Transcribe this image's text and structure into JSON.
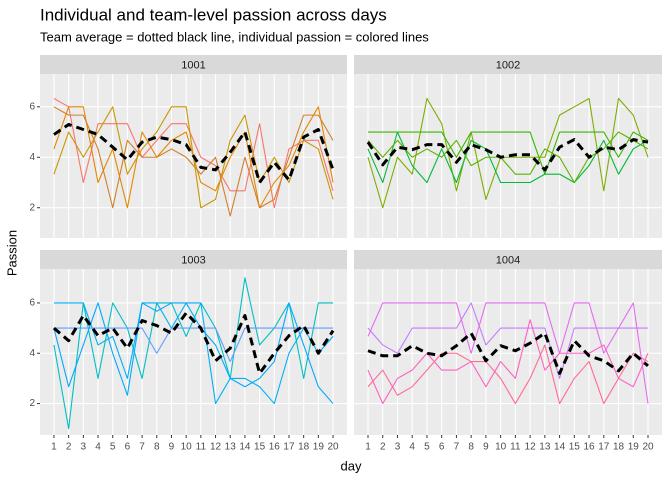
{
  "title": "Individual and team-level passion across days",
  "subtitle": "Team average = dotted black line, individual passion = colored lines",
  "x_label": "day",
  "y_label": "Passion",
  "chart_data": [
    {
      "type": "line",
      "title": "1001",
      "x": [
        1,
        2,
        3,
        4,
        5,
        6,
        7,
        8,
        9,
        10,
        11,
        12,
        13,
        14,
        15,
        16,
        17,
        18,
        19,
        20
      ],
      "xlim": [
        0.05,
        20.95
      ],
      "xticks": [
        1,
        2,
        3,
        4,
        5,
        6,
        7,
        8,
        9,
        10,
        11,
        12,
        13,
        14,
        15,
        16,
        17,
        18,
        19,
        20
      ],
      "ylim": [
        0.8,
        7.3
      ],
      "yticks": [
        2,
        4,
        6
      ],
      "series": [
        {
          "color": "#F8766D",
          "values": [
            6.33,
            6,
            3,
            5.33,
            5.33,
            5.33,
            4,
            4.67,
            5.33,
            5.33,
            4,
            3.67,
            2.67,
            2.67,
            5.33,
            2,
            4.33,
            4.67,
            4.67,
            2.67
          ]
        },
        {
          "color": "#E58700",
          "values": [
            4.33,
            6,
            6,
            3,
            4.33,
            2,
            5,
            4,
            4.67,
            5,
            3,
            2.67,
            4,
            5,
            2,
            3,
            3.67,
            5,
            6,
            3
          ]
        },
        {
          "color": "#C99800",
          "values": [
            3.33,
            5,
            4,
            5,
            6,
            3.33,
            4.33,
            5,
            6,
            6,
            2,
            2.33,
            4.67,
            5.67,
            3,
            4,
            3,
            4.67,
            4.33,
            2.33
          ]
        },
        {
          "color": "#D17F2A",
          "values": [
            6,
            5.67,
            5.67,
            4.33,
            2,
            4.67,
            4,
            4,
            4.33,
            4,
            3.33,
            4,
            1.67,
            4,
            2,
            2.33,
            4,
            5.67,
            5.67,
            4.67
          ]
        },
        {
          "color": "#000000",
          "linestyle": "dashed",
          "values": [
            4.9,
            5.3,
            5.1,
            4.9,
            4.4,
            3.9,
            4.6,
            4.8,
            4.7,
            4.5,
            3.6,
            3.5,
            4.2,
            5.0,
            3.0,
            3.8,
            3.1,
            4.8,
            5.1,
            3.5
          ]
        }
      ]
    },
    {
      "type": "line",
      "title": "1002",
      "x": [
        1,
        2,
        3,
        4,
        5,
        6,
        7,
        8,
        9,
        10,
        11,
        12,
        13,
        14,
        15,
        16,
        17,
        18,
        19,
        20
      ],
      "xlim": [
        0.05,
        20.95
      ],
      "xticks": [
        1,
        2,
        3,
        4,
        5,
        6,
        7,
        8,
        9,
        10,
        11,
        12,
        13,
        14,
        15,
        16,
        17,
        18,
        19,
        20
      ],
      "ylim": [
        0.8,
        7.3
      ],
      "yticks": [
        2,
        4,
        6
      ],
      "series": [
        {
          "color": "#7CAE00",
          "values": [
            4,
            2,
            4,
            3.33,
            6.33,
            5.33,
            2.67,
            5,
            2.33,
            4,
            4,
            4,
            4,
            5.67,
            6,
            6.33,
            2.67,
            6.33,
            5.67,
            4
          ]
        },
        {
          "color": "#39B600",
          "values": [
            5,
            5,
            5,
            5,
            5,
            5,
            4,
            5,
            5,
            5,
            5,
            5,
            3.33,
            5,
            5,
            5,
            5,
            4,
            5,
            4.67
          ]
        },
        {
          "color": "#00BA38",
          "values": [
            4.33,
            3,
            5,
            3.67,
            3,
            4.33,
            3,
            4.67,
            4.33,
            3,
            3,
            3,
            3.33,
            3.33,
            3,
            3.67,
            4.67,
            3.33,
            4.33,
            4.67
          ]
        },
        {
          "color": "#5BB300",
          "values": [
            4.67,
            4,
            4.67,
            4,
            4.33,
            4,
            4.67,
            3.67,
            4,
            4,
            3.33,
            3.33,
            4.33,
            4,
            3,
            4,
            4.33,
            5,
            4.67,
            4.33
          ]
        },
        {
          "color": "#000000",
          "linestyle": "dashed",
          "values": [
            4.6,
            3.7,
            4.4,
            4.3,
            4.5,
            4.5,
            3.8,
            4.5,
            4.3,
            4.0,
            4.1,
            4.1,
            3.5,
            4.4,
            4.7,
            4.0,
            4.4,
            4.3,
            4.7,
            4.6
          ]
        }
      ]
    },
    {
      "type": "line",
      "title": "1003",
      "x": [
        1,
        2,
        3,
        4,
        5,
        6,
        7,
        8,
        9,
        10,
        11,
        12,
        13,
        14,
        15,
        16,
        17,
        18,
        19,
        20
      ],
      "xlim": [
        0.05,
        20.95
      ],
      "xticks": [
        1,
        2,
        3,
        4,
        5,
        6,
        7,
        8,
        9,
        10,
        11,
        12,
        13,
        14,
        15,
        16,
        17,
        18,
        19,
        20
      ],
      "ylim": [
        0.75,
        7.35
      ],
      "yticks": [
        2,
        4,
        6
      ],
      "series": [
        {
          "color": "#00BFC4",
          "values": [
            4.33,
            1,
            6,
            3,
            6,
            5,
            3,
            6,
            6,
            4.67,
            6,
            5,
            3,
            7,
            4.33,
            5,
            6,
            3,
            6,
            6
          ]
        },
        {
          "color": "#00B0F6",
          "values": [
            6,
            6,
            6,
            4.33,
            4.67,
            3,
            6,
            6,
            5,
            6,
            6,
            2,
            3,
            3,
            2.67,
            2,
            4,
            5,
            4,
            4.67
          ]
        },
        {
          "color": "#619CFF",
          "values": [
            5,
            5,
            5,
            5,
            5,
            5,
            5,
            4,
            5,
            5,
            5,
            5,
            3.67,
            5,
            5,
            5,
            5,
            5,
            5,
            5
          ]
        },
        {
          "color": "#00A9FF",
          "values": [
            5,
            2.67,
            4.33,
            6,
            4,
            2.33,
            6,
            5.67,
            6,
            6,
            5,
            4.33,
            3,
            2.67,
            3,
            3.67,
            6,
            4.33,
            2.67,
            2
          ]
        },
        {
          "color": "#000000",
          "linestyle": "dashed",
          "values": [
            5.0,
            4.5,
            5.5,
            4.7,
            5.0,
            4.2,
            5.3,
            5.1,
            4.8,
            5.6,
            5.0,
            3.7,
            4.2,
            5.5,
            3.2,
            4.0,
            4.7,
            5.1,
            4.0,
            4.9
          ]
        }
      ]
    },
    {
      "type": "line",
      "title": "1004",
      "x": [
        1,
        2,
        3,
        4,
        5,
        6,
        7,
        8,
        9,
        10,
        11,
        12,
        13,
        14,
        15,
        16,
        17,
        18,
        19,
        20
      ],
      "xlim": [
        0.05,
        20.95
      ],
      "xticks": [
        1,
        2,
        3,
        4,
        5,
        6,
        7,
        8,
        9,
        10,
        11,
        12,
        13,
        14,
        15,
        16,
        17,
        18,
        19,
        20
      ],
      "ylim": [
        0.75,
        7.35
      ],
      "yticks": [
        2,
        4,
        6
      ],
      "series": [
        {
          "color": "#C77CFF",
          "values": [
            5,
            4.33,
            4,
            5,
            5,
            5,
            5,
            6,
            4.33,
            5,
            5,
            5,
            5,
            3,
            5,
            5,
            5,
            5,
            5,
            5
          ]
        },
        {
          "color": "#E76BF3",
          "values": [
            4.67,
            6,
            6,
            6,
            6,
            6,
            6,
            4,
            6,
            6,
            6,
            6,
            6,
            4,
            6,
            6,
            4,
            5,
            6,
            2
          ]
        },
        {
          "color": "#FF61C3",
          "values": [
            3.33,
            2,
            3,
            3.33,
            4,
            3.33,
            3.33,
            3.67,
            2.67,
            3.67,
            3,
            5.33,
            3.33,
            4,
            4,
            4,
            4.33,
            3,
            2.67,
            4
          ]
        },
        {
          "color": "#FF6C91",
          "values": [
            2.67,
            3.33,
            2.33,
            2.67,
            3.33,
            4,
            4,
            3.67,
            3.67,
            3,
            2,
            3,
            4.33,
            2,
            3,
            3.67,
            2,
            3,
            4,
            3.67
          ]
        },
        {
          "color": "#000000",
          "linestyle": "dashed",
          "values": [
            4.1,
            3.9,
            3.9,
            4.3,
            4.0,
            3.9,
            4.3,
            4.8,
            3.7,
            4.3,
            4.1,
            4.4,
            4.8,
            3.2,
            4.5,
            3.9,
            3.7,
            3.3,
            4.0,
            3.5
          ]
        }
      ]
    }
  ]
}
